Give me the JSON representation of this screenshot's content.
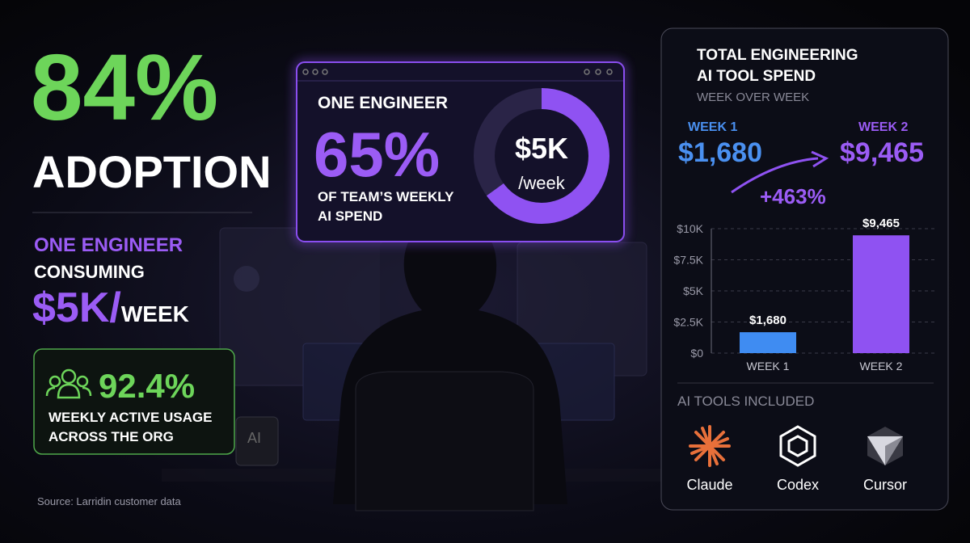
{
  "headline": {
    "value": "84%",
    "label": "ADOPTION"
  },
  "engineer": {
    "line1": "ONE ENGINEER",
    "line2": "CONSUMING",
    "amount": "$5K/",
    "unit": "WEEK"
  },
  "usage": {
    "value": "92.4%",
    "lines": [
      "WEEKLY ACTIVE USAGE",
      "ACROSS THE ORG"
    ]
  },
  "source": "Source: Larridin customer data",
  "center_card": {
    "heading": "ONE ENGINEER",
    "share": {
      "value": 65,
      "label": "65%"
    },
    "caption": [
      "OF TEAM’S WEEKLY",
      "AI SPEND"
    ],
    "donut_center": "$5K",
    "donut_unit": "/week"
  },
  "spend_panel": {
    "title": [
      "TOTAL ENGINEERING",
      "AI TOOL SPEND"
    ],
    "subtitle": "WEEK OVER WEEK",
    "week1": {
      "label": "WEEK 1",
      "amount": "$1,680"
    },
    "week2": {
      "label": "WEEK 2",
      "amount": "$9,465"
    },
    "change": "+463%",
    "tools_heading": "AI TOOLS INCLUDED",
    "tools": [
      "Claude",
      "Codex",
      "Cursor"
    ]
  },
  "chart_data": {
    "type": "bar",
    "categories": [
      "WEEK 1",
      "WEEK 2"
    ],
    "values": [
      1680,
      9465
    ],
    "value_labels": [
      "$1,680",
      "$9,465"
    ],
    "colors": [
      "#3f8cf2",
      "#8f52f2"
    ],
    "ylim": [
      0,
      10000
    ],
    "yticks": [
      {
        "value": 0,
        "label": "$0"
      },
      {
        "value": 2500,
        "label": "$2.5K"
      },
      {
        "value": 5000,
        "label": "$5K"
      },
      {
        "value": 7500,
        "label": "$7.5K"
      },
      {
        "value": 10000,
        "label": "$10K"
      }
    ],
    "grid": true
  }
}
